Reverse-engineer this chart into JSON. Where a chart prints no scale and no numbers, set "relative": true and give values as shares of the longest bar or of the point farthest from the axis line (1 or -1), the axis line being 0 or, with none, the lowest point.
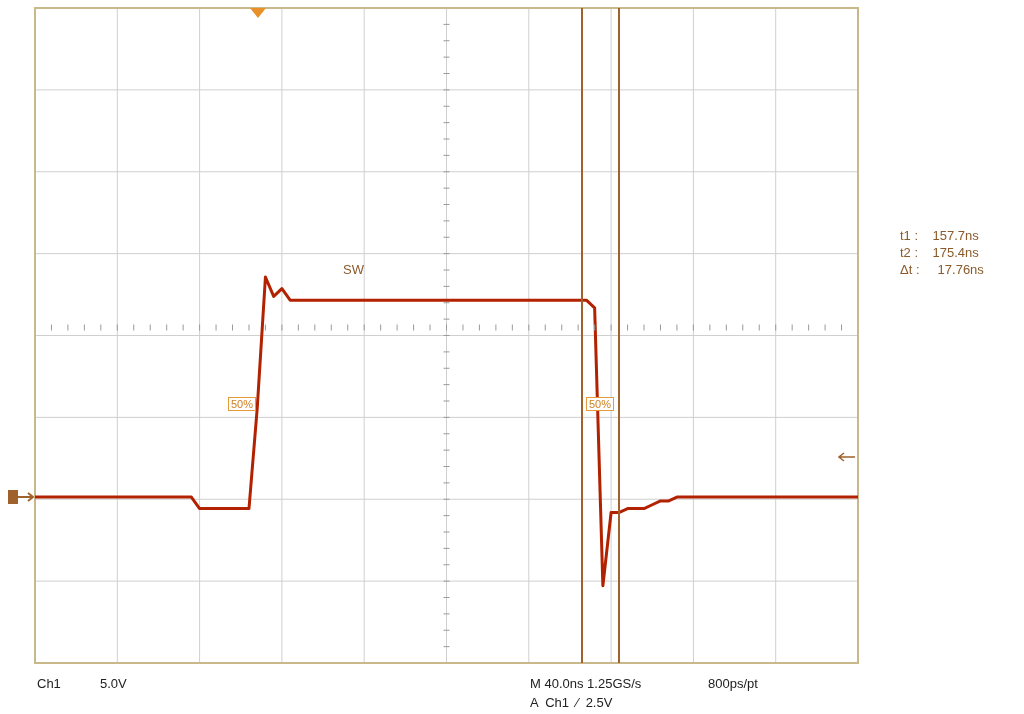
{
  "chart_data": {
    "type": "line",
    "relative": true,
    "categories": [
      null,
      null,
      null,
      null,
      null,
      null,
      null,
      null,
      null,
      null,
      null,
      null,
      null,
      null,
      null,
      null,
      null,
      null,
      null,
      null,
      null,
      null,
      null,
      null,
      null,
      null,
      null,
      null,
      null,
      null,
      null,
      null,
      null,
      null,
      null,
      null,
      null,
      null,
      null,
      null,
      null,
      null,
      null,
      null,
      null,
      null,
      null,
      null,
      null,
      null,
      null,
      null,
      null,
      null,
      null,
      null,
      null,
      null,
      null,
      null,
      null,
      null,
      null,
      null,
      null,
      null,
      null,
      null,
      null,
      null,
      null,
      null,
      null,
      null,
      null,
      null,
      null,
      null,
      null,
      null,
      null,
      null,
      null,
      null,
      null,
      null,
      null,
      null,
      null,
      null,
      null,
      null,
      null,
      null,
      null,
      null,
      null,
      null,
      null,
      null,
      null
    ],
    "series": [
      {
        "color": "#b22200",
        "values": [
          0.43,
          0.43,
          0.43,
          0.43,
          0.43,
          0.43,
          0.43,
          0.43,
          0.43,
          0.43,
          0.43,
          0.43,
          0.43,
          0.43,
          0.43,
          0.43,
          0.43,
          0.43,
          0.43,
          0.43,
          0.4,
          0.4,
          0.4,
          0.4,
          0.4,
          0.4,
          0.4,
          0.66,
          1,
          0.95,
          0.97,
          0.94,
          0.94,
          0.94,
          0.94,
          0.94,
          0.94,
          0.94,
          0.94,
          0.94,
          0.94,
          0.94,
          0.94,
          0.94,
          0.94,
          0.94,
          0.94,
          0.94,
          0.94,
          0.94,
          0.94,
          0.94,
          0.94,
          0.94,
          0.94,
          0.94,
          0.94,
          0.94,
          0.94,
          0.94,
          0.94,
          0.94,
          0.94,
          0.94,
          0.94,
          0.94,
          0.94,
          0.94,
          0.92,
          0.2,
          0.39,
          0.39,
          0.4,
          0.4,
          0.4,
          0.41,
          0.42,
          0.42,
          0.43,
          0.43,
          0.43,
          0.43,
          0.43,
          0.43,
          0.43,
          0.43,
          0.43,
          0.43,
          0.43,
          0.43,
          0.43,
          0.43,
          0.43,
          0.43,
          0.43,
          0.43,
          0.43,
          0.43,
          0.43,
          0.43,
          0.43
        ]
      }
    ],
    "tick_labels": false,
    "grid": true,
    "legend": false,
    "marker": "none",
    "line_style": "solid",
    "annotations": [
      "SW",
      "50%",
      "50%",
      "t1 :    157.7ns",
      "t2 :    175.4ns",
      "Δt :     17.76ns",
      "Ch1",
      "5.0V",
      "M 40.0ns 1.25GS/s",
      "800ps/pt",
      "A  Ch1  ⁄  2.5V"
    ]
  }
}
